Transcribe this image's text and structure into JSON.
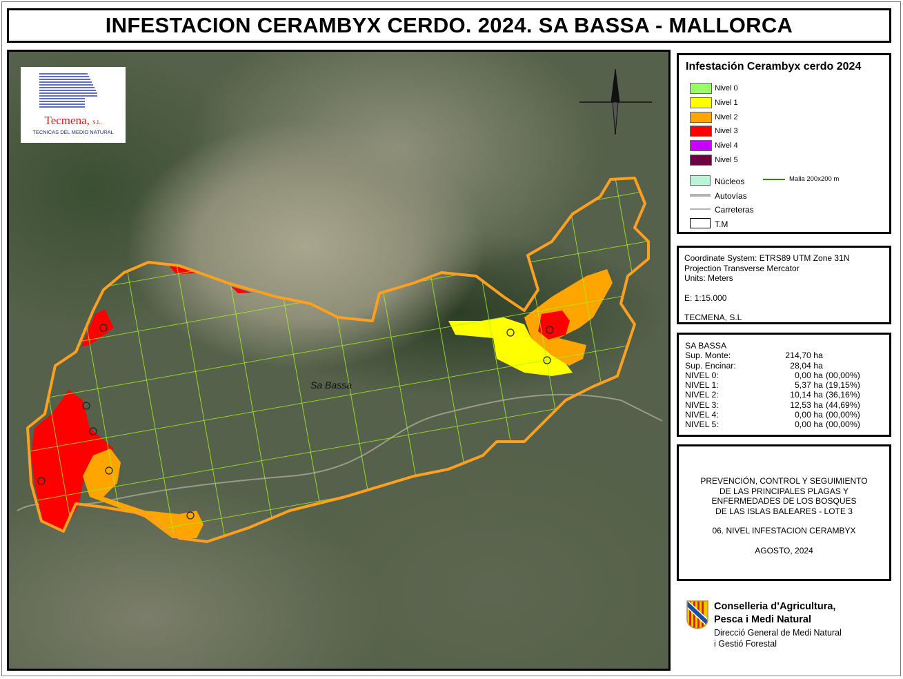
{
  "title": "INFESTACION CERAMBYX CERDO. 2024. SA BASSA - MALLORCA",
  "map": {
    "place_label": "Sa Bassa",
    "logo": {
      "name": "Tecmena,",
      "suffix": "S.L.",
      "tagline": "TECNICAS DEL MEDIO NATURAL"
    },
    "north_arrow": "north-arrow-icon"
  },
  "legend": {
    "title": "Infestación Cerambyx cerdo 2024",
    "levels": [
      {
        "label": "Nivel 0",
        "color": "#99ff66"
      },
      {
        "label": "Nivel 1",
        "color": "#ffff00"
      },
      {
        "label": "Nivel 2",
        "color": "#ffa500"
      },
      {
        "label": "Nivel 3",
        "color": "#ff0000"
      },
      {
        "label": "Nivel 4",
        "color": "#c800ff"
      },
      {
        "label": "Nivel 5",
        "color": "#6b0042"
      }
    ],
    "nucleos": {
      "label": "Núcleos",
      "color": "#b8f5d8"
    },
    "autovias": "Autovías",
    "carreteras": "Carreteras",
    "tm": "T.M",
    "malla": {
      "label": "Malla 200x200 m",
      "color": "#2e8b00"
    },
    "boundary_color": "#ffa020",
    "grid_color": "#a6f51e"
  },
  "coord": {
    "system": "Coordinate System: ETRS89 UTM Zone 31N",
    "projection": "Projection Transverse Mercator",
    "units": "Units: Meters",
    "scale": "E: 1:15.000",
    "author": "TECMENA, S.L"
  },
  "stats": {
    "title": "SA BASSA",
    "rows": [
      {
        "k": "Sup. Monte:",
        "v": "214,70 ha",
        "p": ""
      },
      {
        "k": "Sup. Encinar:",
        "v": "28,04 ha",
        "p": ""
      },
      {
        "k": "NIVEL 0:",
        "v": "0,00 ha",
        "p": "(00,00%)"
      },
      {
        "k": "NIVEL 1:",
        "v": "5,37 ha",
        "p": "(19,15%)"
      },
      {
        "k": "NIVEL 2:",
        "v": "10,14 ha",
        "p": "(36,16%)"
      },
      {
        "k": "NIVEL 3:",
        "v": "12,53 ha",
        "p": "(44,69%)"
      },
      {
        "k": "NIVEL 4:",
        "v": "0,00 ha",
        "p": "(00,00%)"
      },
      {
        "k": "NIVEL 5:",
        "v": "0,00 ha",
        "p": "(00,00%)"
      }
    ]
  },
  "project": {
    "lines": [
      "PREVENCIÓN, CONTROL Y SEGUIMIENTO",
      "DE LAS PRINCIPALES PLAGAS Y",
      "ENFERMEDADES DE LOS BOSQUES",
      "DE LAS ISLAS BALEARES - LOTE 3"
    ],
    "map_name": "06. NIVEL INFESTACION CERAMBYX",
    "date": "AGOSTO, 2024"
  },
  "gov": {
    "line1": "Conselleria d’Agricultura,",
    "line2": "Pesca i Medi Natural",
    "line3": "Direcció General de Medi Natural",
    "line4": "i Gestió Forestal"
  }
}
